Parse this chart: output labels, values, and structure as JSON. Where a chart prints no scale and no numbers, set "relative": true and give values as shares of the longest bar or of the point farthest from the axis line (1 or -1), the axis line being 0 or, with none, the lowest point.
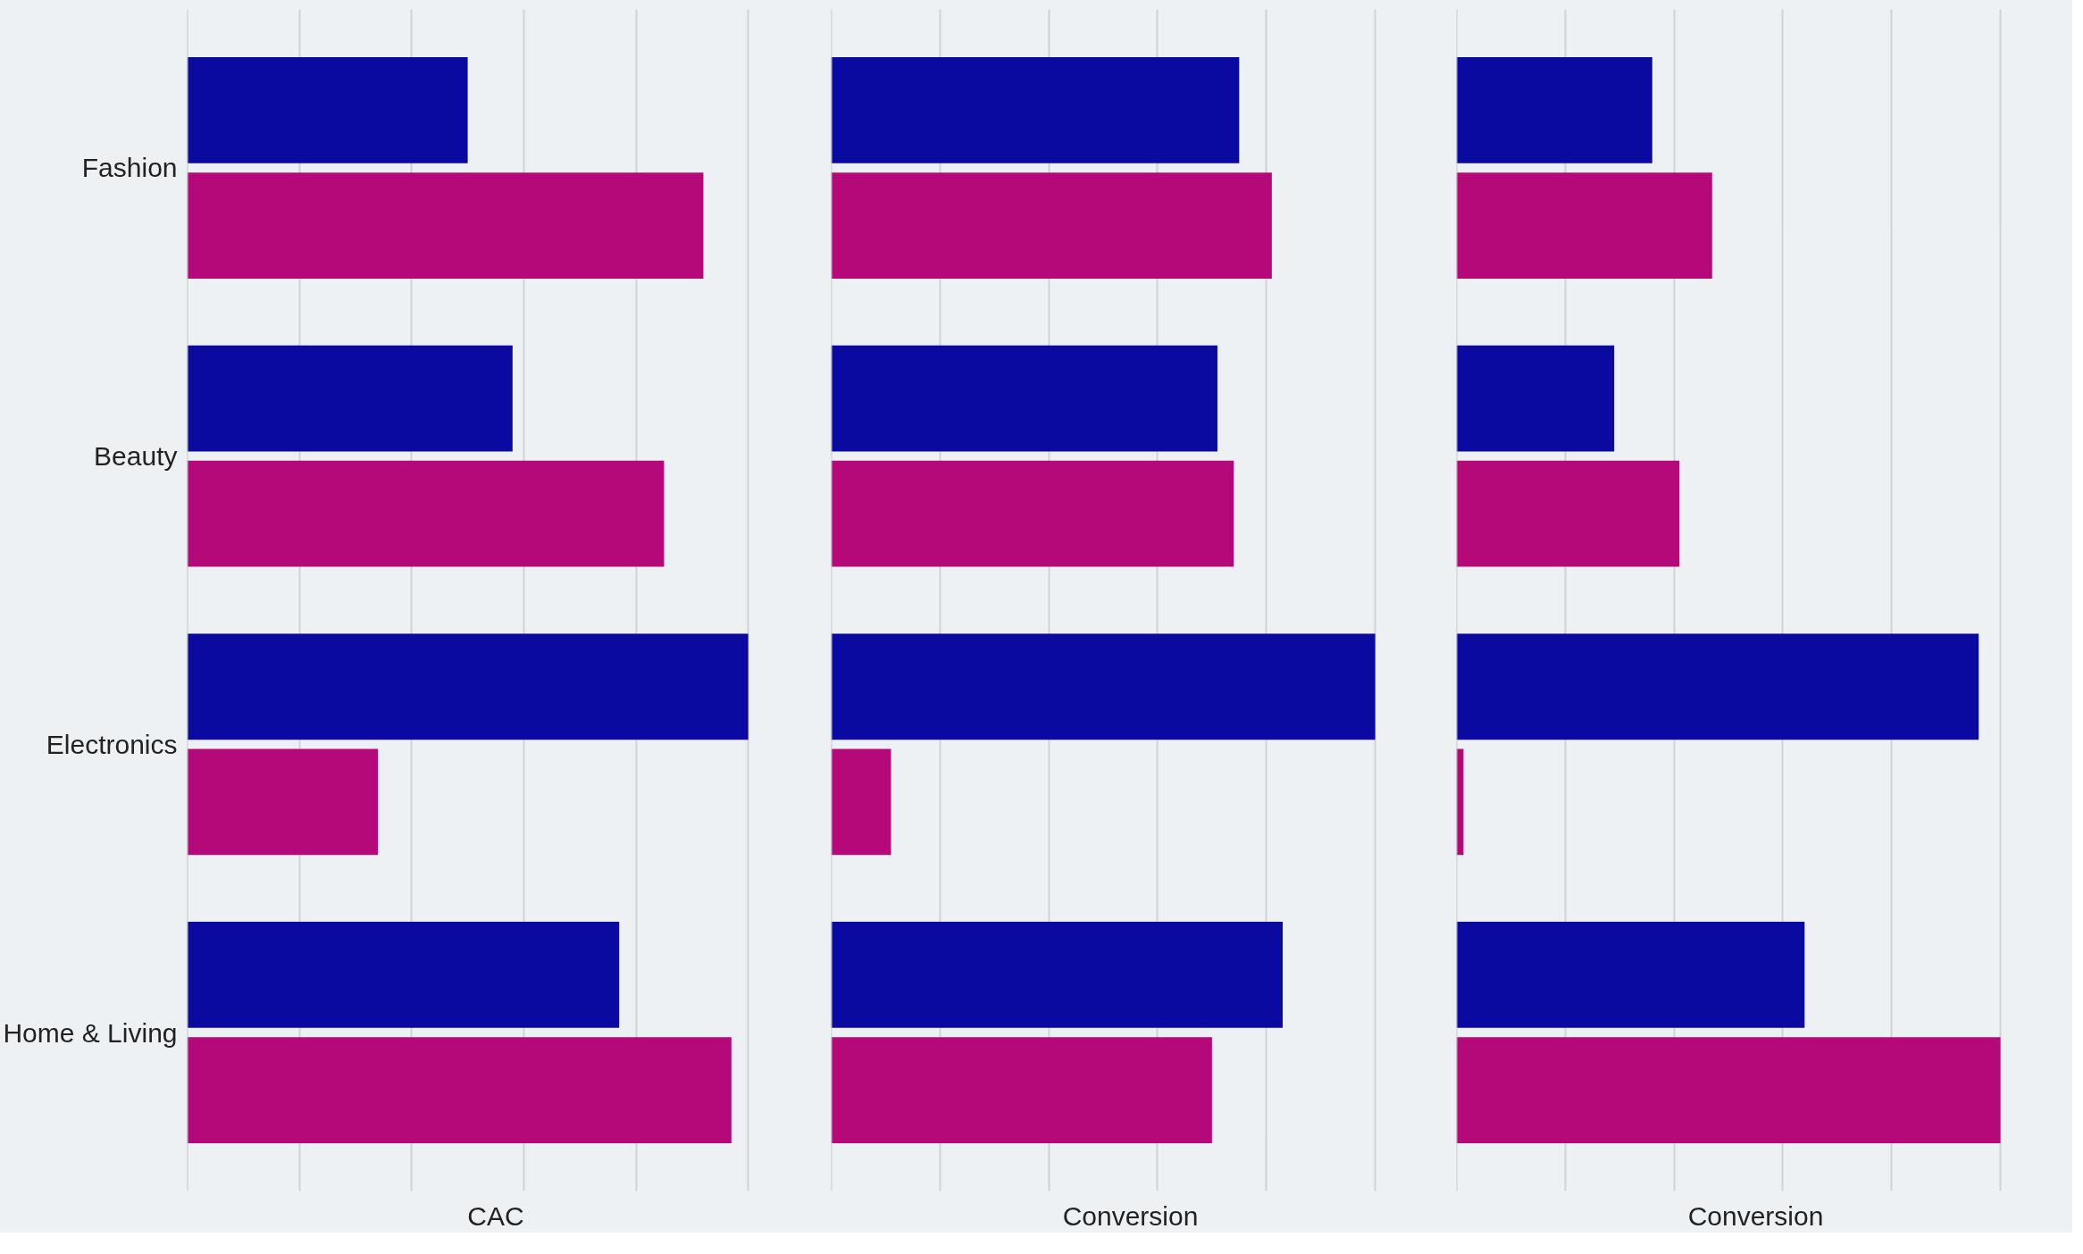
{
  "chart_data": [
    {
      "type": "bar",
      "orientation": "horizontal",
      "relative": true,
      "xlabel": "CAC",
      "categories": [
        "Fashion",
        "Beauty",
        "Electronics",
        "Home & Living"
      ],
      "grid": "x",
      "tick_labels": "y",
      "series": [
        {
          "color": "#0a0aa0",
          "values": [
            0.5,
            0.58,
            1,
            0.77
          ]
        },
        {
          "color": "#b5097a",
          "values": [
            0.92,
            0.85,
            0.34,
            0.97
          ]
        }
      ]
    },
    {
      "type": "bar",
      "orientation": "horizontal",
      "relative": true,
      "xlabel": "Conversion",
      "categories": [
        null,
        null,
        null,
        null
      ],
      "grid": "x",
      "tick_labels": false,
      "series": [
        {
          "color": "#0a0aa0",
          "values": [
            0.75,
            0.71,
            1,
            0.83
          ]
        },
        {
          "color": "#b5097a",
          "values": [
            0.81,
            0.74,
            0.11,
            0.7
          ]
        }
      ]
    },
    {
      "type": "bar",
      "orientation": "horizontal",
      "relative": true,
      "xlabel": "Conversion",
      "categories": [
        null,
        null,
        null,
        null
      ],
      "grid": "x",
      "tick_labels": false,
      "series": [
        {
          "color": "#0a0aa0",
          "values": [
            0.36,
            0.29,
            0.96,
            0.64
          ]
        },
        {
          "color": "#b5097a",
          "values": [
            0.47,
            0.41,
            0.013,
            1
          ]
        }
      ]
    }
  ]
}
